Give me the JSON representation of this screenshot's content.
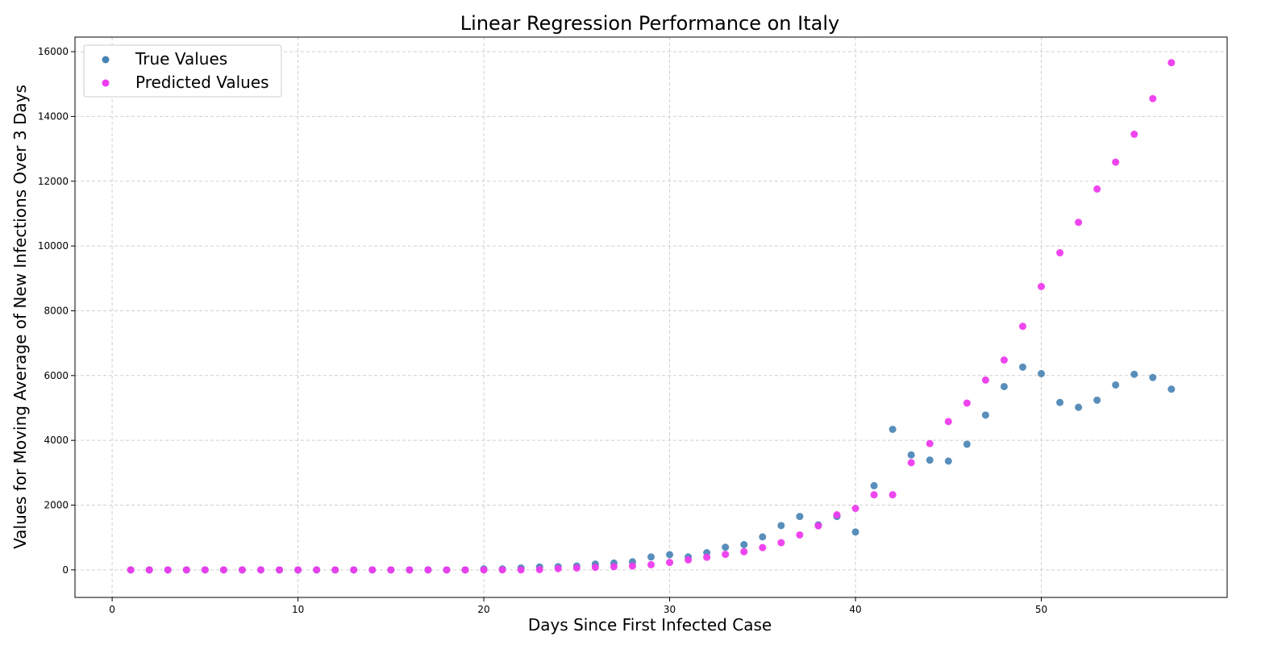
{
  "chart_data": {
    "type": "scatter",
    "title": "Linear Regression Performance on Italy",
    "xlabel": "Days Since First Infected Case",
    "ylabel": "Values for Moving Average of New Infections Over 3 Days",
    "xlim": [
      -2,
      60
    ],
    "ylim": [
      -850,
      16450
    ],
    "xticks": [
      0,
      10,
      20,
      30,
      40,
      50
    ],
    "yticks": [
      0,
      2000,
      4000,
      6000,
      8000,
      10000,
      12000,
      14000,
      16000
    ],
    "grid": true,
    "legend_position": "top-left",
    "x": [
      1,
      2,
      3,
      4,
      5,
      6,
      7,
      8,
      9,
      10,
      11,
      12,
      13,
      14,
      15,
      16,
      17,
      18,
      19,
      20,
      21,
      22,
      23,
      24,
      25,
      26,
      27,
      28,
      29,
      30,
      31,
      32,
      33,
      34,
      35,
      36,
      37,
      38,
      39,
      40,
      41,
      42,
      43,
      44,
      45,
      46,
      47,
      48,
      49,
      50,
      51,
      52,
      53,
      54,
      55,
      56,
      57
    ],
    "series": [
      {
        "name": "True Values",
        "color": "#4682b4",
        "values": [
          0,
          0,
          0,
          0,
          0,
          0,
          0,
          0,
          0,
          0,
          0,
          0,
          0,
          0,
          0,
          0,
          0,
          0,
          0,
          30,
          30,
          60,
          90,
          100,
          120,
          180,
          210,
          250,
          400,
          470,
          400,
          530,
          700,
          780,
          1020,
          1370,
          1650,
          1390,
          1650,
          1170,
          2600,
          4340,
          3550,
          3390,
          3360,
          3880,
          4780,
          5660,
          6260,
          6060,
          5170,
          5020,
          5240,
          5710,
          6040,
          5940,
          5580
        ]
      },
      {
        "name": "Predicted Values",
        "color": "#ee3bee",
        "values": [
          0,
          0,
          0,
          0,
          0,
          0,
          0,
          0,
          0,
          0,
          0,
          0,
          0,
          0,
          0,
          0,
          0,
          0,
          0,
          0,
          0,
          0,
          10,
          40,
          60,
          80,
          100,
          120,
          160,
          230,
          310,
          390,
          480,
          560,
          690,
          840,
          1080,
          1360,
          1700,
          1900,
          2320,
          2320,
          3310,
          3900,
          4580,
          5150,
          5860,
          6480,
          7520,
          8750,
          9790,
          10730,
          11760,
          12590,
          13450,
          14550,
          15660
        ]
      }
    ]
  }
}
